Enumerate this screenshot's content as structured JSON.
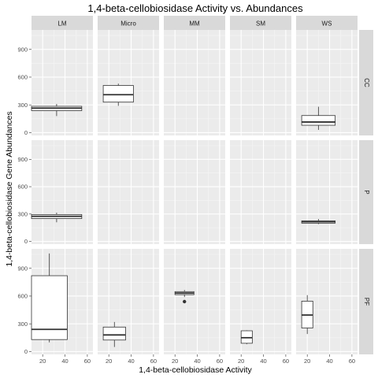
{
  "chart_data": {
    "type": "boxplot",
    "title": "1,4-beta-cellobiosidase Activity vs. Abundances",
    "xlabel": "1,4-beta-cellobiosidase Activity",
    "ylabel": "1,4-beta-cellobiosidase Gene Abundances",
    "xlim": [
      10,
      65
    ],
    "ylim": [
      -30,
      1110
    ],
    "xticks": [
      20,
      40,
      60
    ],
    "yticks": [
      0,
      300,
      600,
      900
    ],
    "grid": true,
    "col_facets": [
      "LM",
      "Micro",
      "MM",
      "SM",
      "WS"
    ],
    "row_facets": [
      "CC",
      "P",
      "PF"
    ],
    "boxes": [
      {
        "col": "LM",
        "row": "CC",
        "x_min": 10,
        "x_max": 55,
        "whisker_low": 180,
        "q1": 238,
        "median": 265,
        "q3": 285,
        "whisker_high": 310,
        "outliers": []
      },
      {
        "col": "Micro",
        "row": "CC",
        "x_min": 15,
        "x_max": 42,
        "whisker_low": 290,
        "q1": 330,
        "median": 410,
        "q3": 510,
        "whisker_high": 530,
        "outliers": []
      },
      {
        "col": "WS",
        "row": "CC",
        "x_min": 15,
        "x_max": 45,
        "whisker_low": 30,
        "q1": 80,
        "median": 115,
        "q3": 185,
        "whisker_high": 280,
        "outliers": []
      },
      {
        "col": "LM",
        "row": "P",
        "x_min": 10,
        "x_max": 55,
        "whisker_low": 210,
        "q1": 250,
        "median": 275,
        "q3": 295,
        "whisker_high": 315,
        "outliers": []
      },
      {
        "col": "WS",
        "row": "P",
        "x_min": 15,
        "x_max": 45,
        "whisker_low": 190,
        "q1": 200,
        "median": 215,
        "q3": 225,
        "whisker_high": 245,
        "outliers": []
      },
      {
        "col": "LM",
        "row": "PF",
        "x_min": 10,
        "x_max": 42,
        "whisker_low": 100,
        "q1": 130,
        "median": 240,
        "q3": 820,
        "whisker_high": 1060,
        "outliers": []
      },
      {
        "col": "Micro",
        "row": "PF",
        "x_min": 15,
        "x_max": 35,
        "whisker_low": 50,
        "q1": 125,
        "median": 180,
        "q3": 265,
        "whisker_high": 320,
        "outliers": []
      },
      {
        "col": "MM",
        "row": "PF",
        "x_min": 20,
        "x_max": 37,
        "whisker_low": 590,
        "q1": 615,
        "median": 632,
        "q3": 648,
        "whisker_high": 665,
        "outliers": [
          540
        ]
      },
      {
        "col": "SM",
        "row": "PF",
        "x_min": 20,
        "x_max": 30,
        "whisker_low": 80,
        "q1": 90,
        "median": 150,
        "q3": 225,
        "whisker_high": 230,
        "outliers": []
      },
      {
        "col": "WS",
        "row": "PF",
        "x_min": 15,
        "x_max": 25,
        "whisker_low": 190,
        "q1": 255,
        "median": 395,
        "q3": 545,
        "whisker_high": 610,
        "outliers": []
      }
    ]
  }
}
